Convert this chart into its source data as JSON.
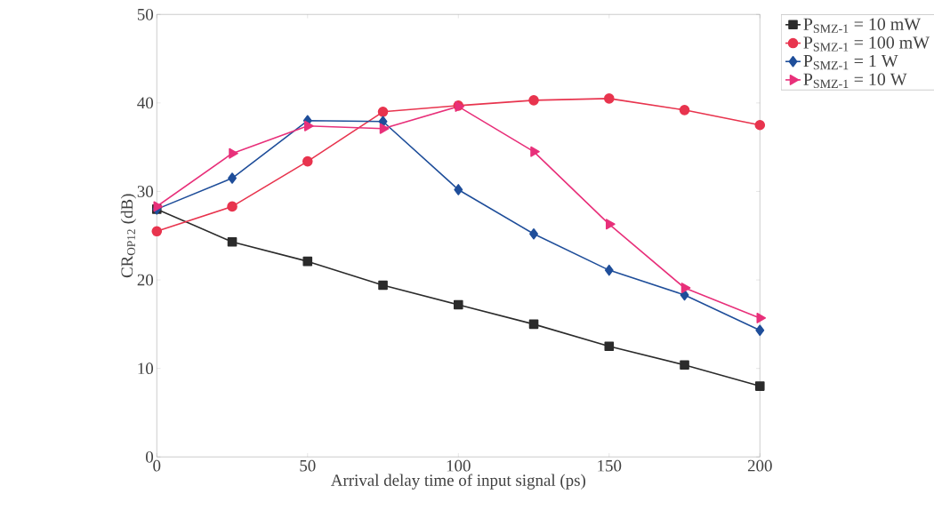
{
  "chart_data": {
    "type": "line",
    "xlabel": "Arrival delay time of input signal (ps)",
    "ylabel": "CR$_{OP12}$ (dB)",
    "x": [
      0,
      25,
      50,
      75,
      100,
      125,
      150,
      175,
      200
    ],
    "xlim": [
      0,
      200
    ],
    "xticks": [
      0,
      50,
      100,
      150,
      200
    ],
    "ylim": [
      0,
      50
    ],
    "yticks": [
      0,
      10,
      20,
      30,
      40,
      50
    ],
    "grid": false,
    "legend": "top right",
    "line_style": "solid",
    "series": [
      {
        "name": "P$_{SMZ-1}$ = 10 mW",
        "color": "#2b2b2b",
        "marker": "square",
        "values": [
          28.0,
          24.3,
          22.1,
          19.4,
          17.2,
          15.0,
          12.5,
          10.4,
          8.0
        ]
      },
      {
        "name": "P$_{SMZ-1}$ = 100 mW",
        "color": "#e8344e",
        "marker": "circle",
        "values": [
          25.5,
          28.3,
          33.4,
          39.0,
          39.7,
          40.3,
          40.5,
          39.2,
          37.5
        ]
      },
      {
        "name": "P$_{SMZ-1}$ = 1 W",
        "color": "#1f4e9a",
        "marker": "diamond",
        "values": [
          28.0,
          31.5,
          38.0,
          37.9,
          30.2,
          25.2,
          21.1,
          18.3,
          14.3
        ]
      },
      {
        "name": "P$_{SMZ-1}$ = 10 W",
        "color": "#e8307a",
        "marker": "triangle",
        "values": [
          28.3,
          34.3,
          37.4,
          37.1,
          39.6,
          34.5,
          26.3,
          19.1,
          15.7
        ]
      }
    ]
  }
}
